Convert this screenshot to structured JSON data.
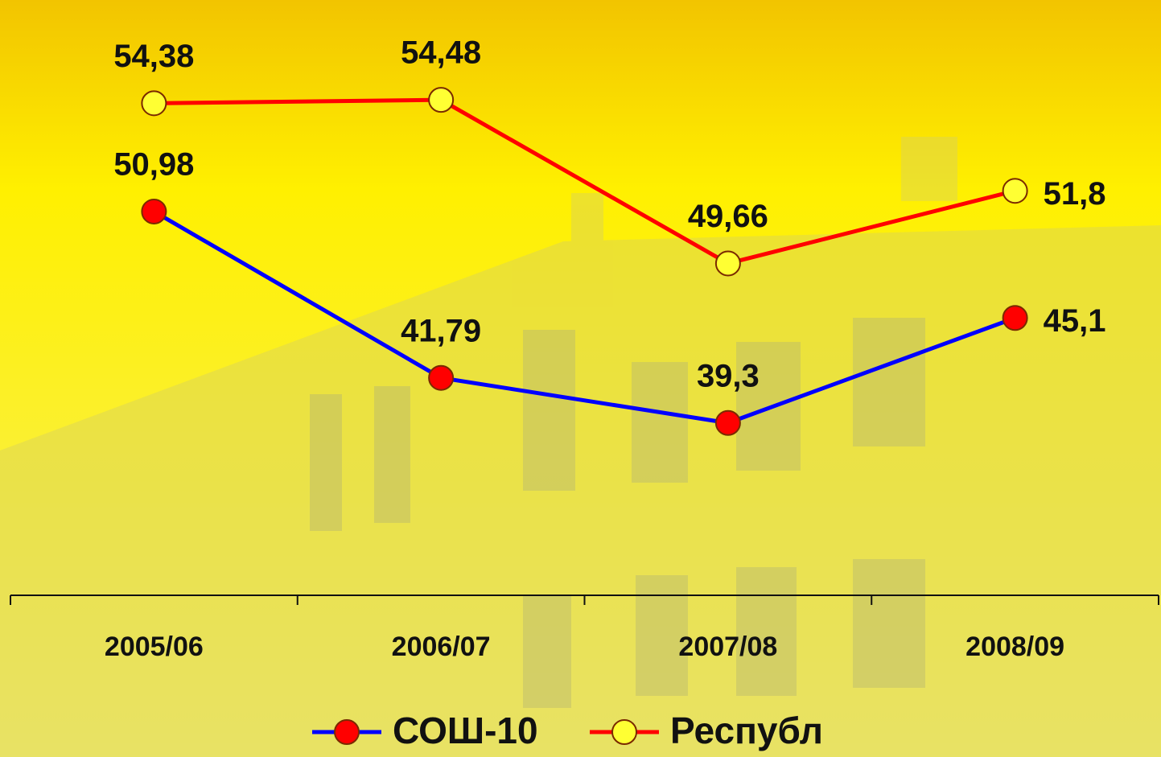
{
  "chart_data": {
    "type": "line",
    "categories": [
      "2005/06",
      "2006/07",
      "2007/08",
      "2008/09"
    ],
    "ylim": [
      40,
      56
    ],
    "y2lim": [
      30,
      60
    ],
    "series": [
      {
        "name": "СОШ-10",
        "color": "#0000ff",
        "marker_color": "#ff0000",
        "axis": "y2",
        "values": [
          50.98,
          41.79,
          39.3,
          45.1
        ],
        "value_labels": [
          "50,98",
          "41,79",
          "39,3",
          "45,1"
        ]
      },
      {
        "name": "Республ",
        "color": "#ff0000",
        "marker_color": "#ffff33",
        "values": [
          54.38,
          54.48,
          49.66,
          51.8
        ],
        "value_labels": [
          "54,38",
          "54,48",
          "49,66",
          "51,8"
        ]
      }
    ]
  }
}
